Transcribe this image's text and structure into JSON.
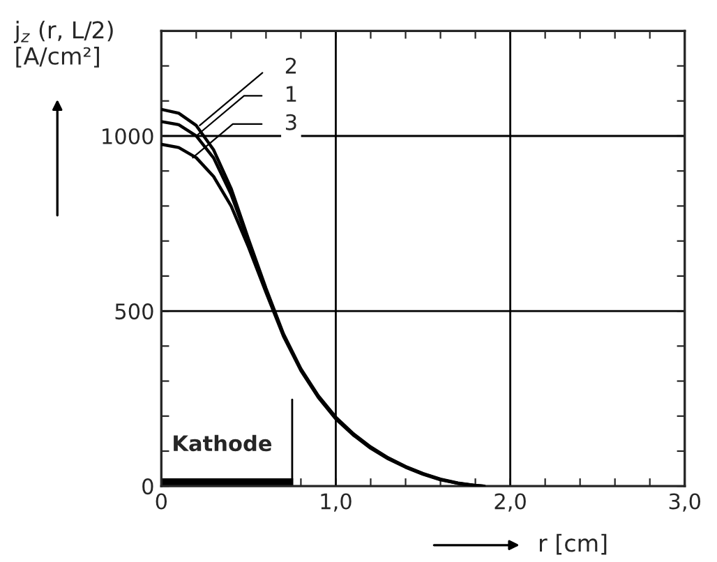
{
  "chart_data": {
    "type": "line",
    "ylabel": "j$_{z}$ (r, L/2)\n[A/cm²]",
    "xlabel": "r [cm]",
    "x": [
      0,
      0.1,
      0.2,
      0.3,
      0.4,
      0.5,
      0.6,
      0.7,
      0.8,
      0.9,
      1.0,
      1.1,
      1.2,
      1.3,
      1.4,
      1.5,
      1.6,
      1.7,
      1.8,
      1.85
    ],
    "series": [
      {
        "name": "2",
        "color": "#000000",
        "values": [
          1076,
          1065,
          1030,
          960,
          850,
          705,
          565,
          435,
          335,
          258,
          197,
          150,
          112,
          81,
          56,
          36,
          20,
          9,
          2,
          0
        ]
      },
      {
        "name": "1",
        "color": "#000000",
        "values": [
          1041,
          1032,
          1000,
          937,
          833,
          698,
          560,
          432,
          333,
          256,
          195,
          148,
          110,
          80,
          55,
          35,
          19,
          8,
          2,
          0
        ]
      },
      {
        "name": "3",
        "color": "#000000",
        "values": [
          976,
          967,
          938,
          884,
          800,
          682,
          553,
          428,
          330,
          253,
          192,
          146,
          108,
          78,
          54,
          34,
          18,
          8,
          1,
          0
        ]
      }
    ],
    "xlim": [
      0,
      3.0
    ],
    "ylim": [
      0,
      1300
    ],
    "xticks": [
      {
        "value": 0,
        "label": "0"
      },
      {
        "value": 0.2,
        "label": null
      },
      {
        "value": 0.4,
        "label": null
      },
      {
        "value": 0.6,
        "label": null
      },
      {
        "value": 0.8,
        "label": null
      },
      {
        "value": 1.0,
        "label": "1,0"
      },
      {
        "value": 1.2,
        "label": null
      },
      {
        "value": 1.4,
        "label": null
      },
      {
        "value": 1.6,
        "label": null
      },
      {
        "value": 1.8,
        "label": null
      },
      {
        "value": 2.0,
        "label": "2,0"
      },
      {
        "value": 2.2,
        "label": null
      },
      {
        "value": 2.4,
        "label": null
      },
      {
        "value": 2.6,
        "label": null
      },
      {
        "value": 2.8,
        "label": null
      },
      {
        "value": 3.0,
        "label": "3,0"
      }
    ],
    "yticks": [
      0,
      {
        "value": 100,
        "label": null
      },
      {
        "value": 200,
        "label": null
      },
      {
        "value": 300,
        "label": null
      },
      {
        "value": 400,
        "label": null
      },
      500,
      {
        "value": 600,
        "label": null
      },
      {
        "value": 700,
        "label": null
      },
      {
        "value": 800,
        "label": null
      },
      {
        "value": 900,
        "label": null
      },
      1000,
      {
        "value": 1100,
        "label": null
      },
      {
        "value": 1200,
        "label": null
      },
      {
        "value": 1300,
        "label": null
      }
    ],
    "grid": true,
    "marker": "none",
    "line_style": "solid",
    "annotations": [
      "Kathode"
    ]
  }
}
